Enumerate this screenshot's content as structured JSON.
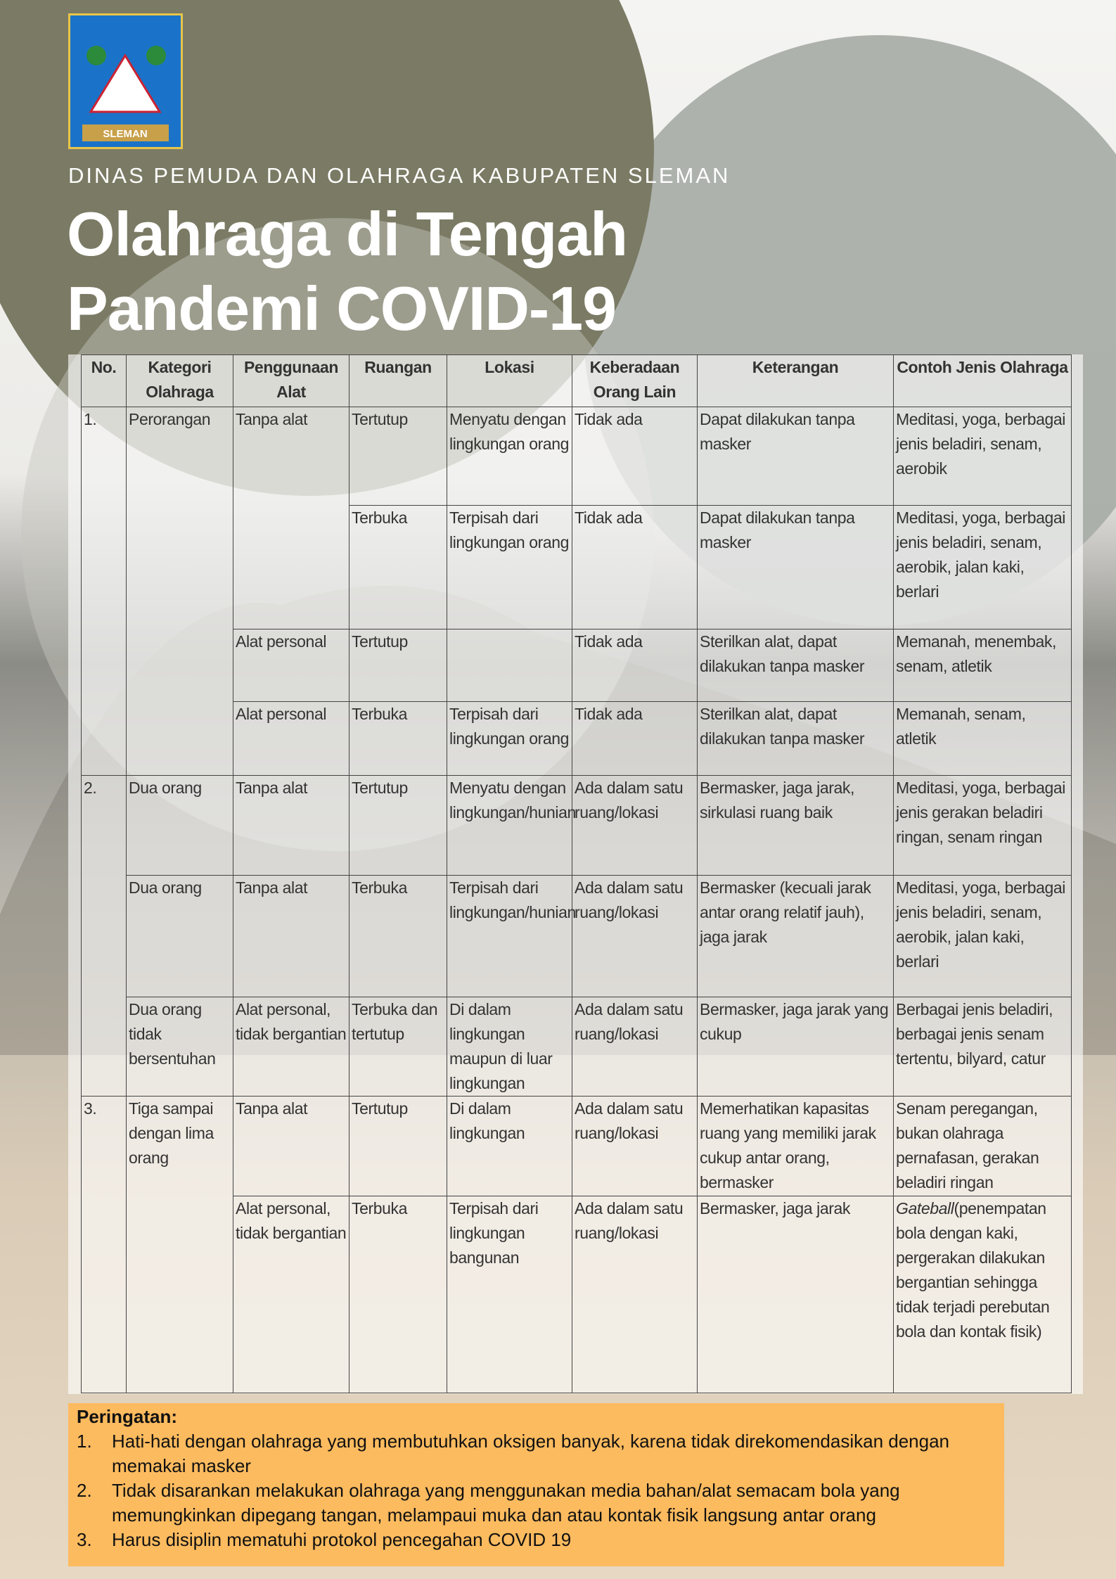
{
  "header": {
    "logo_text": "SLEMAN",
    "subtitle": "DINAS PEMUDA DAN OLAHRAGA KABUPATEN SLEMAN",
    "title_lines": [
      "Olahraga di Tengah",
      "Pandemi COVID-19"
    ]
  },
  "table": {
    "header": [
      "No.",
      "Kategori Olahraga",
      "Penggunaan Alat",
      "Ruangan",
      "Lokasi",
      "Keberadaan Orang Lain",
      "Keterangan",
      "Contoh Jenis Olahraga"
    ],
    "rows": [
      [
        "1.",
        "Perorangan",
        "Tanpa alat",
        "Tertutup",
        "Menyatu dengan lingkungan orang",
        "Tidak ada",
        "Dapat dilakukan tanpa masker",
        "Meditasi, yoga, berbagai jenis beladiri, senam, aerobik"
      ],
      [
        "Terbuka",
        "Terpisah dari lingkungan orang",
        "Tidak ada",
        "Dapat dilakukan tanpa masker",
        "Meditasi, yoga, berbagai jenis beladiri, senam, aerobik, jalan kaki, berlari"
      ],
      [
        "Alat personal",
        "Tertutup",
        "Tidak ada",
        "Sterilkan alat, dapat dilakukan tanpa masker",
        "Memanah, menembak, senam, atletik"
      ],
      [
        "Alat personal",
        "Terbuka",
        "Terpisah dari lingkungan orang",
        "Tidak ada",
        "Sterilkan alat, dapat dilakukan tanpa masker",
        "Memanah, senam, atletik"
      ],
      [
        "2.",
        "Dua orang",
        "Tanpa alat",
        "Tertutup",
        "Menyatu dengan lingkungan/hunian",
        "Ada dalam satu ruang/lokasi",
        "Bermasker, jaga jarak, sirkulasi ruang baik",
        "Meditasi, yoga, berbagai jenis gerakan beladiri ringan, senam ringan"
      ],
      [
        "Dua orang",
        "Tanpa alat",
        "Terbuka",
        "Terpisah dari lingkungan/hunian",
        "Ada dalam satu ruang/lokasi",
        "Bermasker (kecuali jarak antar orang relatif jauh), jaga jarak",
        "Meditasi, yoga, berbagai jenis beladiri, senam, aerobik, jalan kaki, berlari"
      ],
      [
        "Dua orang tidak bersentuhan",
        "Alat personal, tidak bergantian",
        "Terbuka dan tertutup",
        "Di dalam lingkungan maupun di luar lingkungan",
        "Ada dalam satu ruang/lokasi",
        "Bermasker, jaga jarak yang cukup",
        "Berbagai jenis beladiri, berbagai jenis senam tertentu, bilyard, catur"
      ],
      [
        "3.",
        "Tiga sampai dengan lima orang",
        "Tanpa alat",
        "Tertutup",
        "Di dalam lingkungan",
        "Ada dalam satu ruang/lokasi",
        "Memerhatikan kapasitas ruang yang memiliki jarak cukup antar orang, bermasker",
        "Senam peregangan, bukan olahraga pernafasan, gerakan beladiri ringan"
      ],
      [
        "Alat personal, tidak bergantian",
        "Terbuka",
        "Terpisah dari lingkungan bangunan",
        "Ada dalam satu ruang/lokasi",
        "Bermasker, jaga jarak",
        {
          "emphasis": "Gateball",
          "text": "(penempatan bola dengan kaki, pergerakan dilakukan bergantian sehingga tidak terjadi perebutan bola dan kontak fisik)"
        }
      ]
    ]
  },
  "warning": {
    "title": "Peringatan:",
    "items": [
      {
        "number": "1.",
        "text": "Hati-hati dengan olahraga yang membutuhkan oksigen banyak, karena tidak direkomendasikan dengan memakai masker"
      },
      {
        "number": "2.",
        "text": "Tidak disarankan melakukan olahraga yang menggunakan media bahan/alat semacam bola yang memungkinkan dipegang tangan, melampaui muka dan atau kontak fisik langsung antar orang"
      },
      {
        "number": "3.",
        "text": "Harus disiplin mematuhi protokol pencegahan COVID 19"
      }
    ]
  }
}
